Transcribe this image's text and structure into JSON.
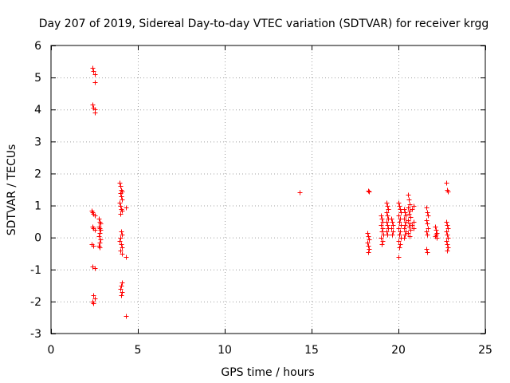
{
  "chart_data": {
    "type": "scatter",
    "title": "Day 207 of 2019, Sidereal Day-to-day VTEC variation (SDTVAR) for receiver krgg",
    "xlabel": "GPS time / hours",
    "ylabel": "SDTVAR / TECUs",
    "xlim": [
      0,
      25
    ],
    "ylim": [
      -3,
      6
    ],
    "xticks": [
      0,
      5,
      10,
      15,
      20,
      25
    ],
    "yticks": [
      -3,
      -2,
      -1,
      0,
      1,
      2,
      3,
      4,
      5,
      6
    ],
    "grid": true,
    "marker": "+",
    "color": "#ff0000",
    "series": [
      {
        "name": "SDTVAR",
        "points": [
          [
            2.4,
            5.3
          ],
          [
            2.45,
            5.2
          ],
          [
            2.5,
            5.1
          ],
          [
            2.5,
            4.85
          ],
          [
            2.4,
            4.15
          ],
          [
            2.45,
            4.05
          ],
          [
            2.5,
            4.0
          ],
          [
            2.5,
            3.9
          ],
          [
            2.35,
            0.85
          ],
          [
            2.4,
            0.8
          ],
          [
            2.45,
            0.75
          ],
          [
            2.5,
            0.7
          ],
          [
            2.4,
            0.35
          ],
          [
            2.45,
            0.3
          ],
          [
            2.5,
            0.25
          ],
          [
            2.35,
            -0.2
          ],
          [
            2.45,
            -0.25
          ],
          [
            2.4,
            -0.9
          ],
          [
            2.5,
            -0.95
          ],
          [
            2.45,
            -1.8
          ],
          [
            2.5,
            -1.9
          ],
          [
            2.4,
            -2.0
          ],
          [
            2.45,
            -2.05
          ],
          [
            2.75,
            0.6
          ],
          [
            2.8,
            0.5
          ],
          [
            2.85,
            0.45
          ],
          [
            2.75,
            0.35
          ],
          [
            2.8,
            0.3
          ],
          [
            2.85,
            0.25
          ],
          [
            2.8,
            0.15
          ],
          [
            2.75,
            0.05
          ],
          [
            2.85,
            -0.05
          ],
          [
            2.8,
            -0.15
          ],
          [
            2.75,
            -0.25
          ],
          [
            2.8,
            -0.3
          ],
          [
            3.95,
            1.7
          ],
          [
            4.0,
            1.6
          ],
          [
            4.05,
            1.5
          ],
          [
            4.1,
            1.45
          ],
          [
            4.0,
            1.4
          ],
          [
            4.05,
            1.3
          ],
          [
            4.1,
            1.2
          ],
          [
            3.95,
            1.1
          ],
          [
            4.0,
            1.0
          ],
          [
            4.05,
            0.9
          ],
          [
            4.1,
            0.85
          ],
          [
            4.0,
            0.75
          ],
          [
            4.3,
            0.95
          ],
          [
            4.05,
            0.2
          ],
          [
            4.1,
            0.1
          ],
          [
            4.0,
            0.0
          ],
          [
            3.95,
            -0.1
          ],
          [
            4.05,
            -0.2
          ],
          [
            4.1,
            -0.3
          ],
          [
            4.0,
            -0.4
          ],
          [
            4.1,
            -0.5
          ],
          [
            4.3,
            -0.6
          ],
          [
            4.1,
            -1.4
          ],
          [
            4.05,
            -1.5
          ],
          [
            4.0,
            -1.6
          ],
          [
            4.1,
            -1.7
          ],
          [
            4.05,
            -1.8
          ],
          [
            4.3,
            -2.45
          ],
          [
            14.3,
            1.42
          ],
          [
            18.25,
            1.47
          ],
          [
            18.3,
            1.43
          ],
          [
            18.2,
            0.15
          ],
          [
            18.25,
            0.05
          ],
          [
            18.3,
            -0.05
          ],
          [
            18.2,
            -0.15
          ],
          [
            18.25,
            -0.25
          ],
          [
            18.3,
            -0.35
          ],
          [
            18.25,
            -0.45
          ],
          [
            19.0,
            0.7
          ],
          [
            19.05,
            0.6
          ],
          [
            19.1,
            0.5
          ],
          [
            19.0,
            0.4
          ],
          [
            19.1,
            0.3
          ],
          [
            19.05,
            0.2
          ],
          [
            19.15,
            0.1
          ],
          [
            19.0,
            0.0
          ],
          [
            19.1,
            -0.1
          ],
          [
            19.05,
            -0.2
          ],
          [
            19.3,
            1.1
          ],
          [
            19.35,
            1.0
          ],
          [
            19.4,
            0.9
          ],
          [
            19.3,
            0.8
          ],
          [
            19.35,
            0.7
          ],
          [
            19.4,
            0.6
          ],
          [
            19.3,
            0.5
          ],
          [
            19.35,
            0.4
          ],
          [
            19.4,
            0.3
          ],
          [
            19.3,
            0.2
          ],
          [
            19.35,
            0.1
          ],
          [
            19.6,
            0.6
          ],
          [
            19.65,
            0.5
          ],
          [
            19.7,
            0.4
          ],
          [
            19.6,
            0.3
          ],
          [
            19.7,
            0.2
          ],
          [
            19.65,
            0.1
          ],
          [
            20.0,
            1.1
          ],
          [
            20.05,
            1.0
          ],
          [
            20.1,
            0.9
          ],
          [
            20.15,
            0.8
          ],
          [
            20.0,
            0.7
          ],
          [
            20.1,
            0.6
          ],
          [
            20.05,
            0.5
          ],
          [
            20.15,
            0.4
          ],
          [
            20.0,
            0.3
          ],
          [
            20.1,
            0.2
          ],
          [
            20.05,
            0.1
          ],
          [
            20.15,
            0.0
          ],
          [
            20.0,
            -0.1
          ],
          [
            20.1,
            -0.2
          ],
          [
            20.05,
            -0.3
          ],
          [
            20.0,
            -0.6
          ],
          [
            20.3,
            0.9
          ],
          [
            20.35,
            0.8
          ],
          [
            20.4,
            0.7
          ],
          [
            20.3,
            0.6
          ],
          [
            20.4,
            0.5
          ],
          [
            20.35,
            0.4
          ],
          [
            20.3,
            0.3
          ],
          [
            20.4,
            0.2
          ],
          [
            20.35,
            0.1
          ],
          [
            20.3,
            0.0
          ],
          [
            20.55,
            1.35
          ],
          [
            20.6,
            1.2
          ],
          [
            20.65,
            1.05
          ],
          [
            20.55,
            0.95
          ],
          [
            20.65,
            0.85
          ],
          [
            20.6,
            0.75
          ],
          [
            20.7,
            0.65
          ],
          [
            20.55,
            0.55
          ],
          [
            20.65,
            0.45
          ],
          [
            20.6,
            0.35
          ],
          [
            20.7,
            0.25
          ],
          [
            20.55,
            0.15
          ],
          [
            20.65,
            0.05
          ],
          [
            20.85,
            1.0
          ],
          [
            20.8,
            0.9
          ],
          [
            20.85,
            0.5
          ],
          [
            20.8,
            0.4
          ],
          [
            20.85,
            0.3
          ],
          [
            21.6,
            0.95
          ],
          [
            21.65,
            0.8
          ],
          [
            21.7,
            0.7
          ],
          [
            21.6,
            0.55
          ],
          [
            21.65,
            0.45
          ],
          [
            21.7,
            0.3
          ],
          [
            21.6,
            0.2
          ],
          [
            21.65,
            0.1
          ],
          [
            21.6,
            -0.35
          ],
          [
            21.65,
            -0.45
          ],
          [
            22.1,
            0.35
          ],
          [
            22.15,
            0.25
          ],
          [
            22.2,
            0.15
          ],
          [
            22.1,
            0.05
          ],
          [
            22.2,
            0.0
          ],
          [
            22.15,
            0.1
          ],
          [
            22.75,
            1.7
          ],
          [
            22.8,
            1.5
          ],
          [
            22.85,
            1.45
          ],
          [
            22.75,
            0.5
          ],
          [
            22.8,
            0.4
          ],
          [
            22.85,
            0.3
          ],
          [
            22.75,
            0.2
          ],
          [
            22.8,
            0.1
          ],
          [
            22.85,
            0.0
          ],
          [
            22.75,
            -0.1
          ],
          [
            22.8,
            -0.2
          ],
          [
            22.85,
            -0.3
          ],
          [
            22.8,
            -0.4
          ]
        ]
      }
    ]
  }
}
